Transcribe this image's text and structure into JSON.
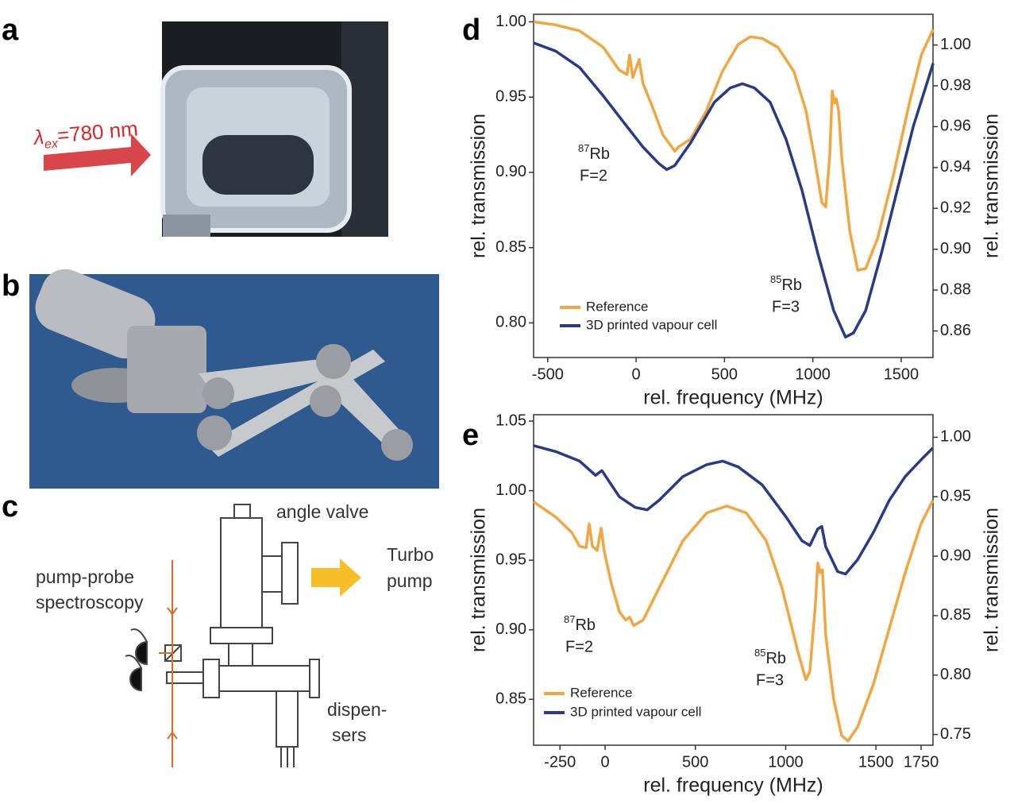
{
  "panels": {
    "labels": [
      "a",
      "b",
      "c",
      "d",
      "e"
    ],
    "a": {
      "symbol": "λ",
      "sub": "ex",
      "text": "=780 nm"
    },
    "c": {
      "angle_valve": "angle valve",
      "turbo": [
        "Turbo",
        "pump"
      ],
      "pump_probe": [
        "pump-probe",
        "spectroscopy"
      ],
      "dispensers": [
        "dispen-",
        "sers"
      ]
    }
  },
  "chart_data": [
    {
      "type": "line",
      "xlabel": "rel. frequency (MHz)",
      "ylabel": "rel. transmission",
      "y2label": "rel. transmission",
      "y2color": "#2e3d8c",
      "xlim": [
        -580,
        1680
      ],
      "xticks": [
        -500,
        0,
        500,
        1000,
        1500
      ],
      "ylim": [
        0.777,
        1.005
      ],
      "yticks": [
        {
          "value": 0.8,
          "label": "0.80"
        },
        {
          "value": 0.85,
          "label": "0.85"
        },
        {
          "value": 0.9,
          "label": "0.90"
        },
        {
          "value": 0.95,
          "label": "0.95"
        },
        {
          "value": 1.0,
          "label": "1.00"
        }
      ],
      "y2lim": [
        0.847,
        1.015
      ],
      "y2ticks": [
        {
          "value": 0.86,
          "label": "0.86"
        },
        {
          "value": 0.88,
          "label": "0.88"
        },
        {
          "value": 0.9,
          "label": "0.90"
        },
        {
          "value": 0.92,
          "label": "0.92"
        },
        {
          "value": 0.94,
          "label": "0.94"
        },
        {
          "value": 0.96,
          "label": "0.96"
        },
        {
          "value": 0.98,
          "label": "0.98"
        },
        {
          "value": 1.0,
          "label": "1.00"
        }
      ],
      "legend": "lower left",
      "annotations": [
        {
          "sup": "87",
          "text": "Rb",
          "line2": "F=2"
        },
        {
          "sup": "85",
          "text": "Rb",
          "line2": "F=3"
        }
      ],
      "series": [
        {
          "name": "Reference",
          "color": "#f0a742",
          "axis": "y",
          "x": [
            -580,
            -455,
            -320,
            -185,
            -96,
            -51,
            -37,
            -19,
            17,
            39,
            84,
            152,
            219,
            241,
            308,
            398,
            488,
            578,
            646,
            713,
            803,
            893,
            961,
            1006,
            1051,
            1073,
            1096,
            1110,
            1123,
            1132,
            1146,
            1164,
            1209,
            1254,
            1299,
            1366,
            1456,
            1546,
            1614,
            1681
          ],
          "values": [
            1.0,
            0.998,
            0.994,
            0.983,
            0.968,
            0.965,
            0.978,
            0.963,
            0.975,
            0.959,
            0.946,
            0.925,
            0.914,
            0.917,
            0.922,
            0.941,
            0.967,
            0.985,
            0.99,
            0.989,
            0.983,
            0.967,
            0.941,
            0.912,
            0.88,
            0.877,
            0.912,
            0.954,
            0.946,
            0.949,
            0.941,
            0.909,
            0.861,
            0.835,
            0.836,
            0.856,
            0.898,
            0.946,
            0.978,
            0.995
          ]
        },
        {
          "name": "3D printed vapour cell",
          "color": "#2b3a87",
          "axis": "y2",
          "x": [
            -580,
            -455,
            -320,
            -185,
            -51,
            39,
            128,
            173,
            219,
            308,
            443,
            533,
            601,
            669,
            758,
            848,
            938,
            1028,
            1118,
            1185,
            1230,
            1299,
            1388,
            1478,
            1568,
            1681
          ],
          "values": [
            1.001,
            0.997,
            0.989,
            0.975,
            0.96,
            0.95,
            0.942,
            0.939,
            0.941,
            0.952,
            0.972,
            0.979,
            0.981,
            0.979,
            0.972,
            0.954,
            0.929,
            0.898,
            0.87,
            0.857,
            0.859,
            0.87,
            0.898,
            0.929,
            0.96,
            0.991
          ]
        }
      ]
    },
    {
      "type": "line",
      "xlabel": "rel. frequency (MHz)",
      "ylabel": "rel. transmission",
      "y2label": "rel. transmission",
      "y2color": "#2e3d8c",
      "xlim": [
        -396,
        1816
      ],
      "xticks": [
        -250,
        0,
        500,
        1000,
        1500,
        1750
      ],
      "ylim": [
        0.817,
        1.0546
      ],
      "yticks": [
        {
          "value": 0.85,
          "label": "0.85"
        },
        {
          "value": 0.9,
          "label": "0.90"
        },
        {
          "value": 0.95,
          "label": "0.95"
        },
        {
          "value": 1.0,
          "label": "1.00"
        },
        {
          "value": 1.05,
          "label": "1.05"
        }
      ],
      "y2lim": [
        0.741,
        1.019
      ],
      "y2ticks": [
        {
          "value": 0.75,
          "label": "0.75"
        },
        {
          "value": 0.8,
          "label": "0.80"
        },
        {
          "value": 0.85,
          "label": "0.85"
        },
        {
          "value": 0.9,
          "label": "0.90"
        },
        {
          "value": 0.95,
          "label": "0.95"
        },
        {
          "value": 1.0,
          "label": "1.00"
        }
      ],
      "legend": "lower left",
      "annotations": [
        {
          "sup": "87",
          "text": "Rb",
          "line2": "F=2"
        },
        {
          "sup": "85",
          "text": "Rb",
          "line2": "F=3"
        }
      ],
      "series": [
        {
          "name": "Reference",
          "color": "#f0a742",
          "axis": "y",
          "x": [
            -396,
            -273,
            -185,
            -141,
            -105,
            -88,
            -70,
            -44,
            -22,
            -4,
            35,
            79,
            114,
            136,
            158,
            211,
            299,
            431,
            563,
            673,
            782,
            892,
            980,
            1068,
            1112,
            1134,
            1165,
            1178,
            1191,
            1204,
            1222,
            1266,
            1310,
            1345,
            1398,
            1486,
            1574,
            1662,
            1749,
            1815
          ],
          "values": [
            0.992,
            0.981,
            0.97,
            0.96,
            0.959,
            0.976,
            0.96,
            0.957,
            0.973,
            0.956,
            0.933,
            0.913,
            0.907,
            0.909,
            0.903,
            0.907,
            0.93,
            0.964,
            0.984,
            0.989,
            0.984,
            0.964,
            0.93,
            0.884,
            0.864,
            0.87,
            0.919,
            0.948,
            0.941,
            0.943,
            0.896,
            0.85,
            0.824,
            0.82,
            0.83,
            0.861,
            0.901,
            0.941,
            0.976,
            0.993
          ]
        },
        {
          "name": "3D printed vapour cell",
          "color": "#2b3a87",
          "axis": "y2",
          "x": [
            -396,
            -273,
            -141,
            -53,
            -18,
            0,
            79,
            167,
            233,
            299,
            431,
            563,
            651,
            738,
            870,
            1002,
            1090,
            1134,
            1178,
            1200,
            1222,
            1288,
            1332,
            1398,
            1486,
            1574,
            1662,
            1749,
            1815
          ],
          "values": [
            0.993,
            0.988,
            0.98,
            0.968,
            0.972,
            0.968,
            0.95,
            0.941,
            0.939,
            0.947,
            0.967,
            0.977,
            0.98,
            0.975,
            0.96,
            0.933,
            0.913,
            0.909,
            0.923,
            0.925,
            0.908,
            0.887,
            0.885,
            0.897,
            0.92,
            0.947,
            0.967,
            0.981,
            0.991
          ]
        }
      ]
    }
  ]
}
